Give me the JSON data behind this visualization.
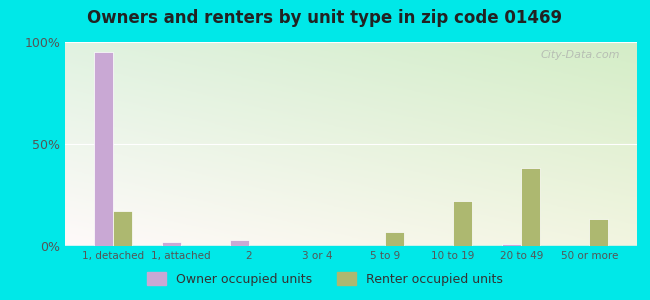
{
  "title": "Owners and renters by unit type in zip code 01469",
  "categories": [
    "1, detached",
    "1, attached",
    "2",
    "3 or 4",
    "5 to 9",
    "10 to 19",
    "20 to 49",
    "50 or more"
  ],
  "owner_values": [
    95,
    2,
    3,
    0,
    0,
    0,
    1,
    0
  ],
  "renter_values": [
    17,
    0,
    0,
    0,
    7,
    22,
    38,
    13
  ],
  "owner_color": "#c9a8d4",
  "renter_color": "#adb870",
  "background_outer": "#00e8e8",
  "ylim": [
    0,
    100
  ],
  "yticks": [
    0,
    50,
    100
  ],
  "ytick_labels": [
    "0%",
    "50%",
    "100%"
  ],
  "legend_owner": "Owner occupied units",
  "legend_renter": "Renter occupied units",
  "bar_width": 0.28,
  "watermark": "City-Data.com"
}
